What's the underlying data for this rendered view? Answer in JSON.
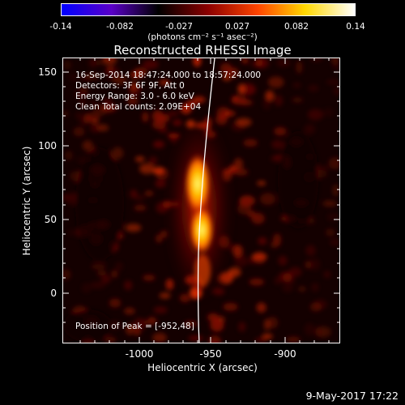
{
  "colorbar": {
    "tick_labels": [
      "-0.14",
      "-0.082",
      "-0.027",
      "0.027",
      "0.082",
      "0.14"
    ],
    "units": "(photons cm⁻² s⁻¹ asec⁻²)",
    "colors": [
      "#0000ff",
      "#5a00c8",
      "#000000",
      "#8b0000",
      "#ff4500",
      "#ffd700",
      "#ffffff"
    ]
  },
  "title": "Reconstructed RHESSI Image",
  "info": {
    "time_range": "16-Sep-2014 18:47:24.000 to 18:57:24.000",
    "detectors": "Detectors: 3F 6F 9F, Att 0",
    "energy": "Energy Range: 3.0 - 6.0 keV",
    "algorithm": "Clean    Total counts: 2.09E+04"
  },
  "peak": "Position of Peak = [-952,48]",
  "axes": {
    "xlabel": "Heliocentric X (arcsec)",
    "ylabel": "Heliocentric Y (arcsec)",
    "xticks": [
      "-1000",
      "-950",
      "-900"
    ],
    "yticks": [
      "150",
      "100",
      "50",
      "0"
    ]
  },
  "footer_date": "9-May-2017 17:22"
}
